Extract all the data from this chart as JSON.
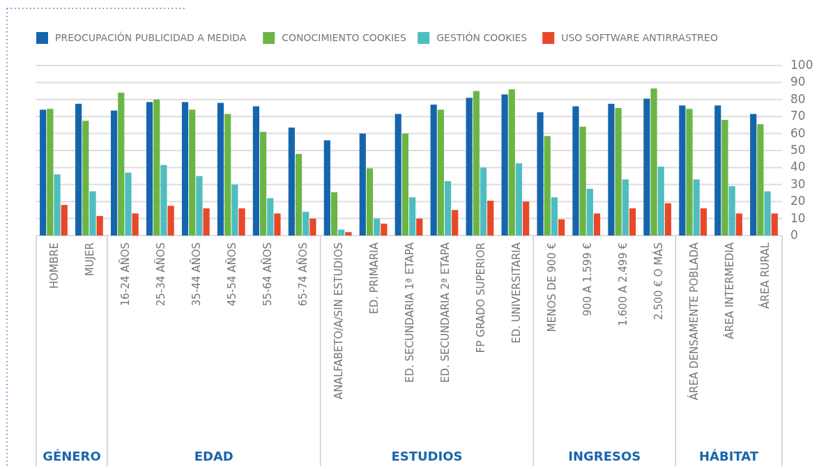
{
  "chart_data": {
    "type": "bar",
    "categories": [
      "HOMBRE",
      "MUJER",
      "16-24 AÑOS",
      "25-34 AÑOS",
      "35-44 AÑOS",
      "45-54 AÑOS",
      "55-64 AÑOS",
      "65-74 AÑOS",
      "ANALFABETO/A/SIN ESTUDIOS",
      "ED. PRIMARIA",
      "ED. SECUNDARIA 1ª ETAPA",
      "ED. SECUNDARIA 2ª ETAPA",
      "FP GRADO SUPERIOR",
      "ED. UNIVERSITARIA",
      "MENOS DE 900 €",
      "900 A 1.599 €",
      "1.600 A 2.499 €",
      "2.500 € O MÁS",
      "ÁREA DENSAMENTE POBLADA",
      "ÁREA INTERMEDIA",
      "ÁREA RURAL"
    ],
    "series": [
      {
        "name": "PREOCUPACIÓN PUBLICIDAD A MEDIDA",
        "color": "#1565ad",
        "values": [
          74,
          77.5,
          73.5,
          78.5,
          78.5,
          78,
          76,
          63.5,
          56,
          60,
          71.5,
          77,
          81,
          83,
          72.5,
          76,
          77.5,
          80.5,
          76.5,
          76.5,
          71.5
        ]
      },
      {
        "name": "CONOCIMIENTO COOKIES",
        "color": "#6bb545",
        "values": [
          74.5,
          67.5,
          84,
          80,
          74,
          71.5,
          61,
          48,
          25.5,
          39.5,
          60,
          74,
          85,
          86,
          58.5,
          64,
          75,
          86.5,
          74.5,
          68,
          65.5
        ]
      },
      {
        "name": "GESTIÓN COOKIES",
        "color": "#4fbdc0",
        "values": [
          36,
          26,
          37,
          41.5,
          35,
          30,
          22,
          14,
          3.5,
          10,
          22.5,
          32,
          40,
          42.5,
          22.5,
          27.5,
          33,
          40.5,
          33,
          29,
          26
        ]
      },
      {
        "name": "USO SOFTWARE ANTIRRASTREO",
        "color": "#e84829",
        "values": [
          18,
          11.5,
          13,
          17.5,
          16,
          16,
          13,
          10,
          2,
          7,
          10,
          15,
          20.5,
          20,
          9.5,
          13,
          16,
          19,
          16,
          13,
          13
        ]
      }
    ],
    "ylim": [
      0,
      100
    ],
    "yticks": [
      0,
      10,
      20,
      30,
      40,
      50,
      60,
      70,
      80,
      90,
      100
    ],
    "grid": "y",
    "legend": "top",
    "annotations": [
      "GÉNERO",
      "EDAD",
      "ESTUDIOS",
      "INGRESOS",
      "HÁBITAT"
    ]
  }
}
